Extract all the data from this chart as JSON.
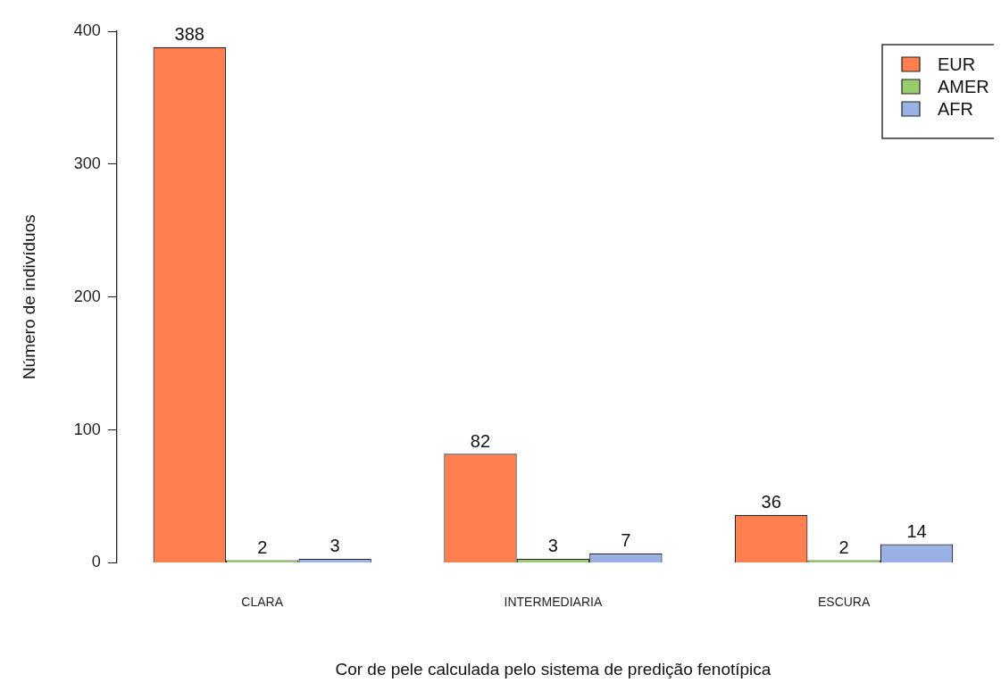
{
  "chart_data": {
    "type": "bar",
    "xlabel": "Cor de pele calculada pelo sistema de predição fenotípica",
    "ylabel": "Número de indivíduos",
    "categories": [
      "CLARA",
      "INTERMEDIARIA",
      "ESCURA"
    ],
    "series": [
      {
        "name": "EUR",
        "color": "#ff7f50",
        "values": [
          388,
          82,
          36
        ]
      },
      {
        "name": "AMER",
        "color": "#98cc6c",
        "values": [
          2,
          3,
          2
        ]
      },
      {
        "name": "AFR",
        "color": "#9bb1e6",
        "values": [
          3,
          7,
          14
        ]
      }
    ],
    "ylim": [
      0,
      400
    ],
    "yticks": [
      0,
      100,
      200,
      300,
      400
    ],
    "grid": false,
    "legend": "top right",
    "data_labels": true
  }
}
